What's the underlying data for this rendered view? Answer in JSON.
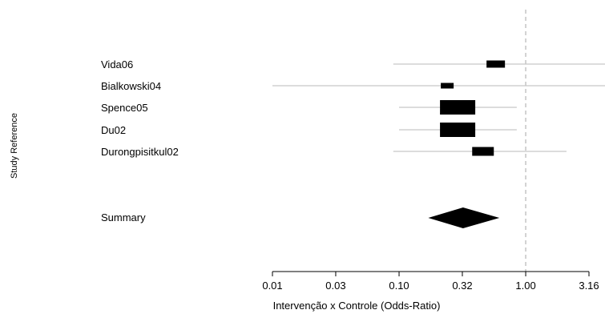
{
  "chart_data": {
    "type": "forest",
    "xlabel": "Intervenção x Controle (Odds-Ratio)",
    "ylabel": "Study Reference",
    "scale": "log",
    "xlim": [
      0.01,
      3.16
    ],
    "xticks": [
      "0.01",
      "0.03",
      "0.10",
      "0.32",
      "1.00",
      "3.16"
    ],
    "xtick_values": [
      0.01,
      0.0316,
      0.1,
      0.316,
      1.0,
      3.16
    ],
    "reference_line": 1.0,
    "studies": [
      {
        "name": "Vida06",
        "or": 0.58,
        "lower": 0.09,
        "upper": 3.16,
        "weight": 0.14
      },
      {
        "name": "Bialkowski04",
        "or": 0.24,
        "lower": 0.01,
        "upper": 3.16,
        "weight": 0.07
      },
      {
        "name": "Spence05",
        "or": 0.29,
        "lower": 0.1,
        "upper": 0.85,
        "weight": 0.52
      },
      {
        "name": "Du02",
        "or": 0.29,
        "lower": 0.1,
        "upper": 0.85,
        "weight": 0.52
      },
      {
        "name": "Durongpisitkul02",
        "or": 0.46,
        "lower": 0.09,
        "upper": 2.1,
        "weight": 0.19
      }
    ],
    "summary": {
      "name": "Summary",
      "or": 0.32,
      "lower": 0.17,
      "upper": 0.62
    }
  }
}
